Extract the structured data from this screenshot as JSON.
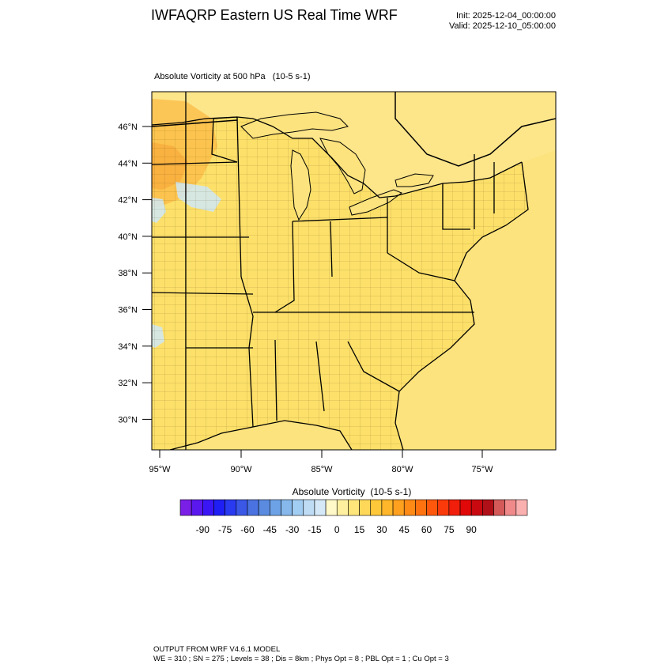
{
  "header": {
    "title": "IWFAQRP Eastern US Real Time WRF",
    "init": "Init: 2025-12-04_00:00:00",
    "valid": "Valid: 2025-12-10_05:00:00"
  },
  "map": {
    "subtitle": "Absolute Vorticity at 500 hPa   (10-5 s-1)",
    "lat_labels": [
      "46°N",
      "44°N",
      "42°N",
      "40°N",
      "38°N",
      "36°N",
      "34°N",
      "32°N",
      "30°N"
    ],
    "lon_labels": [
      "95°W",
      "90°W",
      "85°W",
      "80°W",
      "75°W"
    ],
    "fill_colors": {
      "ocean": "#fde37e",
      "land": "#fde06a",
      "north_west_max": "#fbbb45",
      "negative_patch": "#cfe7f6",
      "border": "#000000"
    }
  },
  "colorbar": {
    "title": "Absolute Vorticity  (10-5 s-1)",
    "labels": [
      "-90",
      "-75",
      "-60",
      "-45",
      "-30",
      "-15",
      "0",
      "15",
      "30",
      "45",
      "60",
      "75",
      "90"
    ],
    "colors": [
      "#7a1fe6",
      "#5a18ee",
      "#3b16f5",
      "#1f1ff5",
      "#2a3af0",
      "#3a57e6",
      "#4a72e0",
      "#5a8be0",
      "#6ea2e6",
      "#86b8ec",
      "#a2cdf2",
      "#bfdcf5",
      "#d4e8f8",
      "#fff8c8",
      "#fff0a0",
      "#ffe67a",
      "#ffd85a",
      "#ffc83a",
      "#ffb62a",
      "#ffa01e",
      "#ff8a16",
      "#ff7210",
      "#ff580c",
      "#fa3a0a",
      "#f01e0a",
      "#e00808",
      "#c80a10",
      "#b01018",
      "#d45a5a",
      "#f08a8a",
      "#fbb0b0"
    ]
  },
  "footer": {
    "line1": "OUTPUT FROM WRF V4.6.1 MODEL",
    "line2": "WE = 310 ; SN = 275 ; Levels = 38 ; Dis = 8km ; Phys Opt = 8 ; PBL Opt = 1 ; Cu Opt = 3"
  }
}
